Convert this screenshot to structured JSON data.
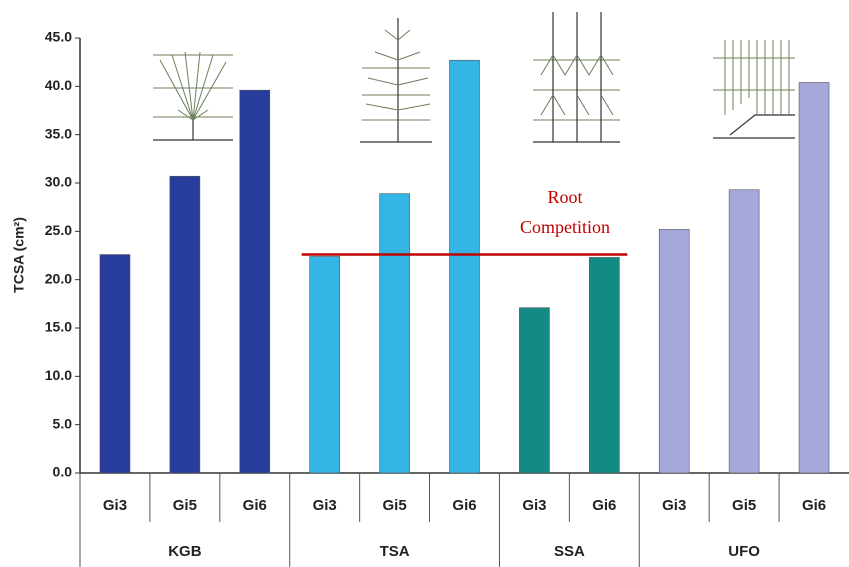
{
  "chart_data": {
    "type": "bar",
    "y_label": "TCSA (cm²)",
    "ylim": [
      0,
      45
    ],
    "yticks": [
      {
        "value": 0,
        "label": "0.0"
      },
      {
        "value": 5,
        "label": "5.0"
      },
      {
        "value": 10,
        "label": "10.0"
      },
      {
        "value": 15,
        "label": "15.0"
      },
      {
        "value": 20,
        "label": "20.0"
      },
      {
        "value": 25,
        "label": "25.0"
      },
      {
        "value": 30,
        "label": "30.0"
      },
      {
        "value": 35,
        "label": "35.0"
      },
      {
        "value": 40,
        "label": "40.0"
      },
      {
        "value": 45,
        "label": "45.0"
      }
    ],
    "groups": [
      {
        "name": "KGB",
        "color": "#283c9c",
        "categories": [
          "Gi3",
          "Gi5",
          "Gi6"
        ],
        "values": [
          22.6,
          30.7,
          39.6
        ]
      },
      {
        "name": "TSA",
        "color": "#35b4e6",
        "categories": [
          "Gi3",
          "Gi5",
          "Gi6"
        ],
        "values": [
          22.4,
          28.9,
          42.7
        ]
      },
      {
        "name": "SSA",
        "color": "#148a84",
        "categories": [
          "Gi3",
          "Gi6"
        ],
        "values": [
          17.1,
          22.3
        ]
      },
      {
        "name": "UFO",
        "color": "#a6a8dc",
        "categories": [
          "Gi3",
          "Gi5",
          "Gi6"
        ],
        "values": [
          25.2,
          29.3,
          40.4
        ]
      }
    ],
    "reference_line": {
      "value": 22.6,
      "color": "#c00000"
    },
    "annotation": [
      "Root",
      "Competition"
    ]
  }
}
